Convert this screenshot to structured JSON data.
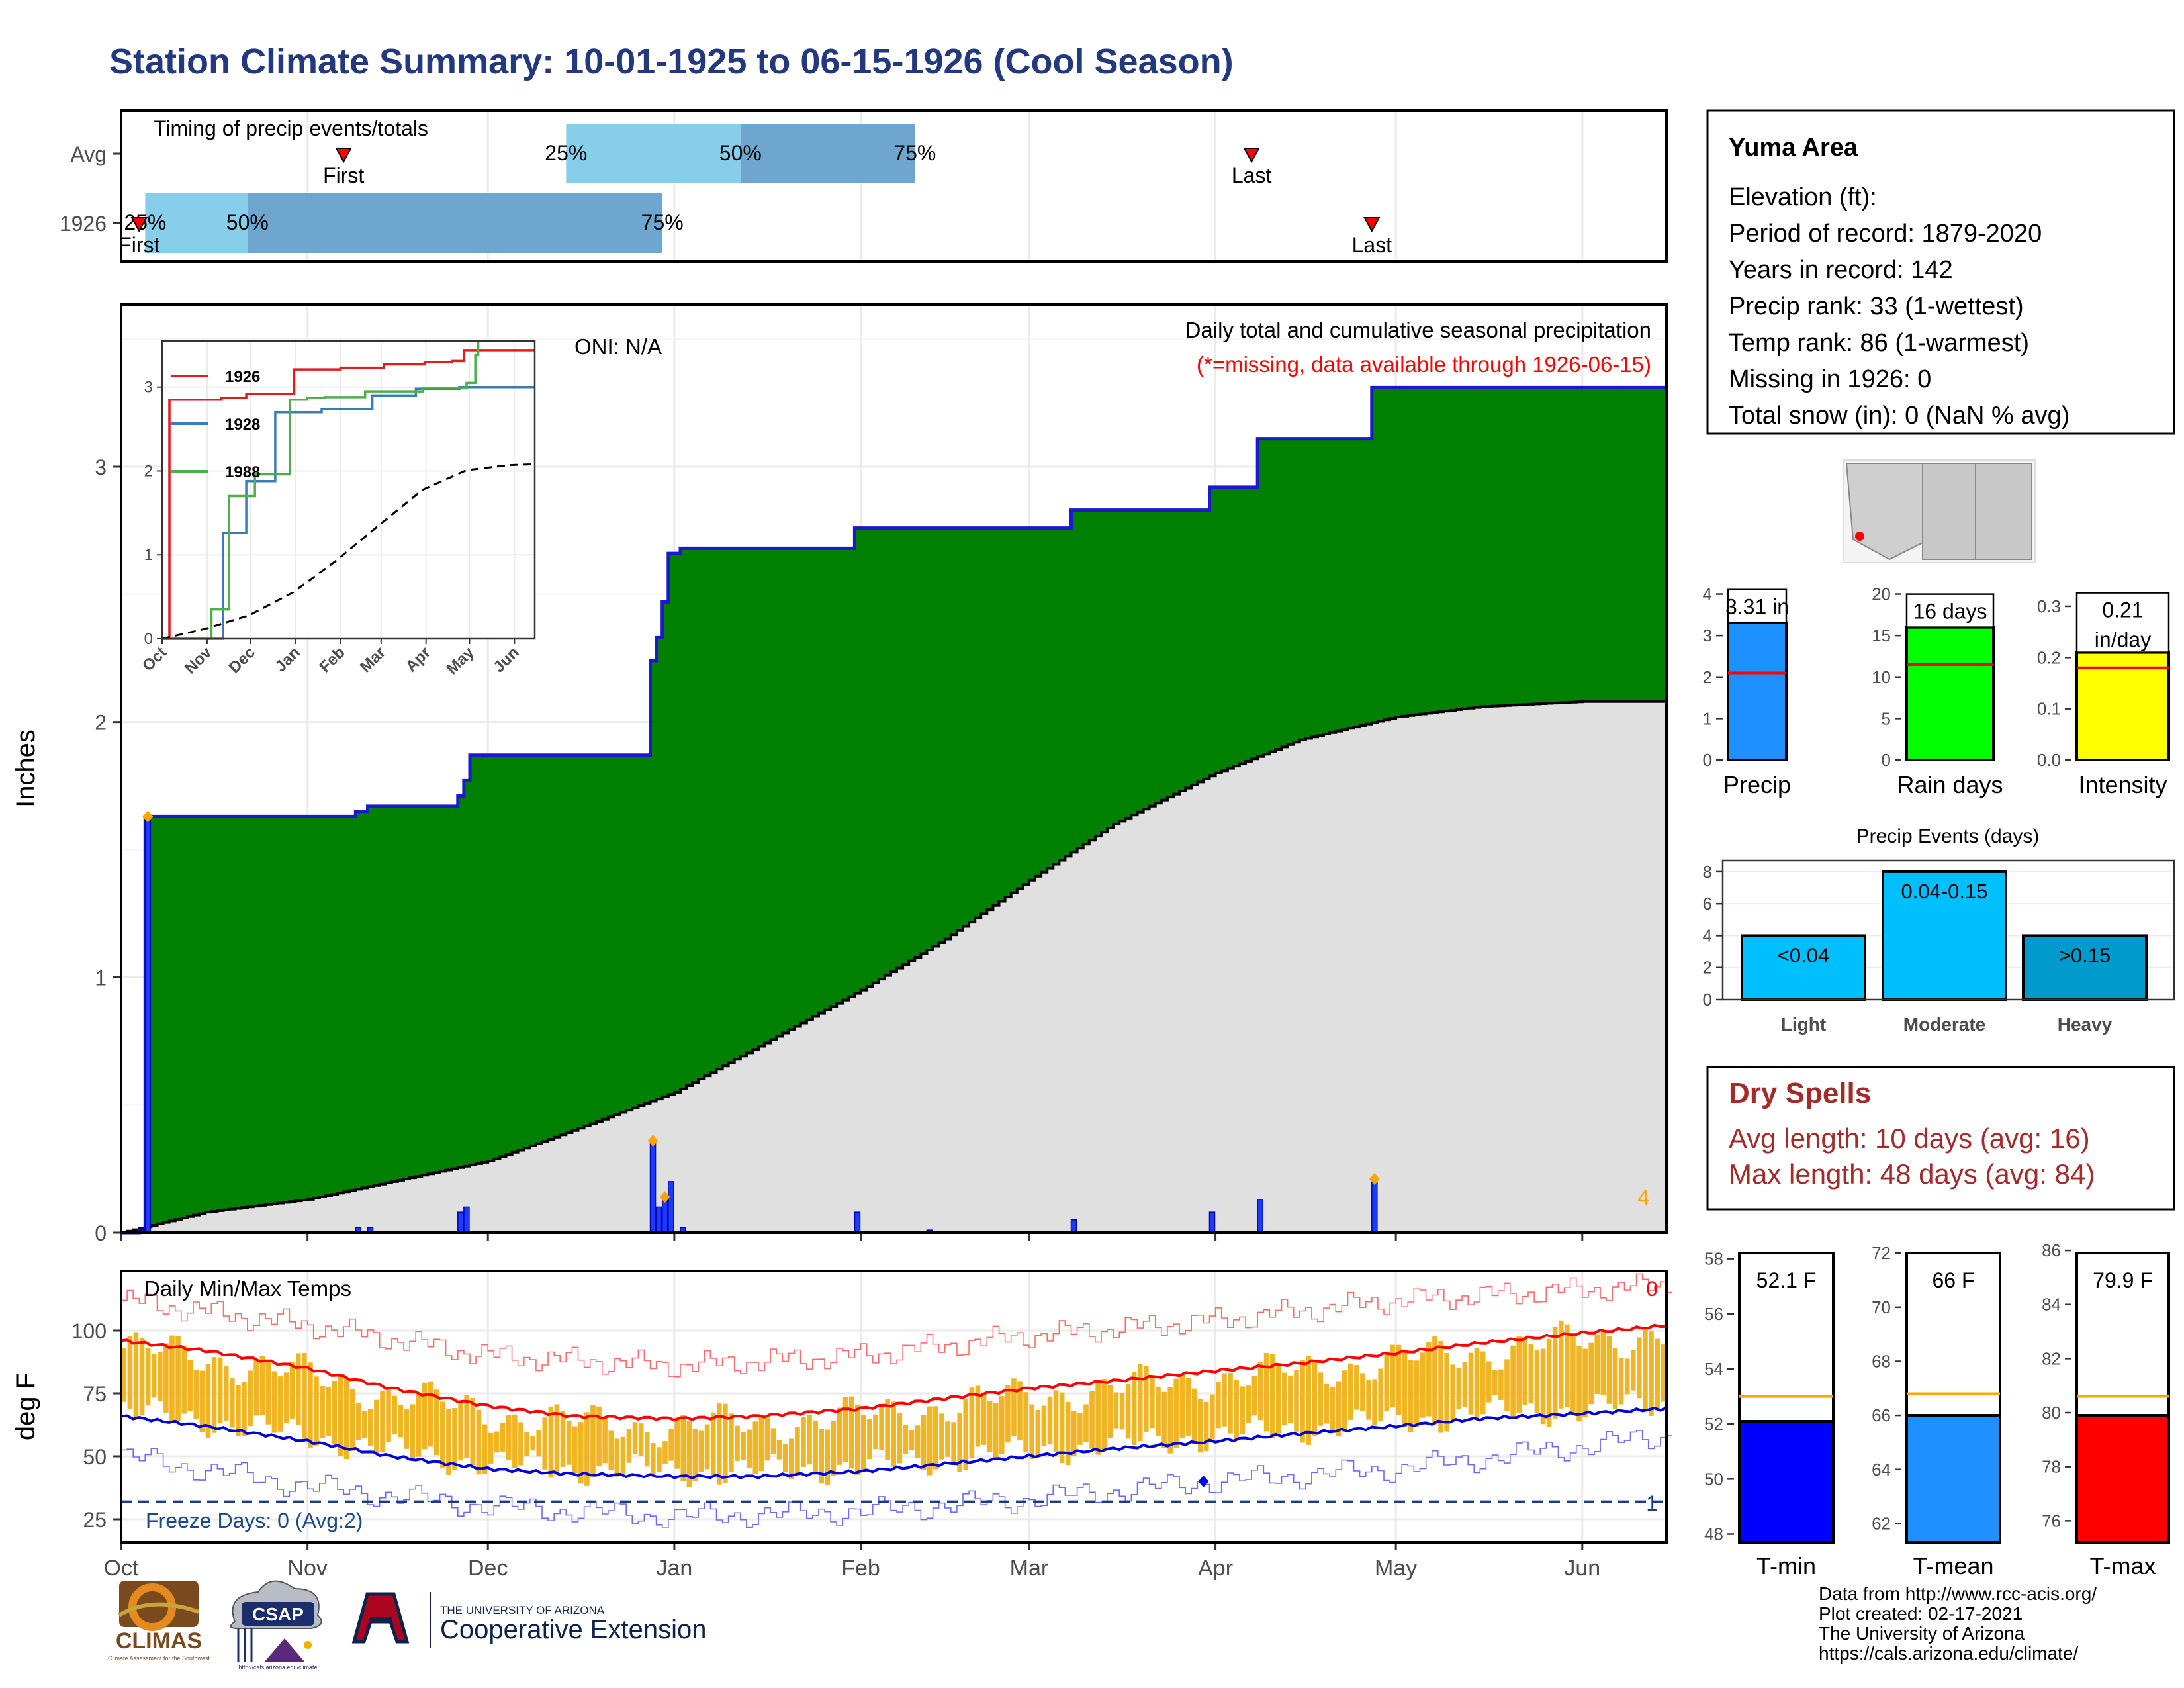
{
  "title": "Station Climate Summary: 10-01-1925 to 06-15-1926 (Cool Season)",
  "colors": {
    "title": "#23397f",
    "green": "#008000",
    "gray_fill": "#e0e0e0",
    "blue_bars": "#1a3cff",
    "orange": "#ffa500",
    "temp_bar": "#efb525",
    "dry_red": "#a52a2a",
    "light_blue": "#87ceeb",
    "mid_blue": "#6fa6d0",
    "precip_box": "#1e90ff",
    "rain_box": "#00ff00",
    "intensity_box": "#ffff00",
    "light_box": "#00bfff",
    "moderate_box": "#00bfff",
    "heavy_box": "#009acd"
  },
  "timing": {
    "label": "Timing of precip events/totals",
    "rows": [
      {
        "label": "Avg",
        "first_date": "1925-11-07",
        "first_label": "First",
        "last_date": "1926-04-07",
        "last_label": "Last",
        "q25_date": "1925-12-14",
        "q50_date": "1926-01-12",
        "q75_date": "1926-02-10",
        "q25": "25%",
        "q50": "50%",
        "q75": "75%"
      },
      {
        "label": "1926",
        "first_date": "1925-10-04",
        "first_label": "First",
        "last_date": "1926-04-27",
        "last_label": "Last",
        "q25_date": "1925-10-05",
        "q50_date": "1925-10-22",
        "q75_date": "1925-12-30",
        "q25": "25%",
        "q50": "50%",
        "q75": "75%"
      }
    ]
  },
  "precip_panel": {
    "ylabel": "Inches",
    "oni": "ONI: N/A",
    "caption": "Daily total and cumulative seasonal precipitation",
    "missing_note": "(*=missing, data available through 1926-06-15)",
    "corner_count": "4",
    "yticks": [
      "0",
      "1",
      "2",
      "3"
    ]
  },
  "inset": {
    "xticks": [
      "Oct",
      "Nov",
      "Dec",
      "Jan",
      "Feb",
      "Mar",
      "Apr",
      "May",
      "Jun"
    ],
    "yticks": [
      "0",
      "1",
      "2",
      "3"
    ],
    "legend": [
      "1926",
      "1928",
      "1988"
    ],
    "series_colors": [
      "#e41a1c",
      "#377eb8",
      "#4daf4a"
    ]
  },
  "temp_panel": {
    "ylabel": "deg F",
    "label": "Daily Min/Max Temps",
    "freeze_label": "Freeze Days: 0 (Avg:2)",
    "max_count": "0",
    "min_count": "1",
    "yticks": [
      "25",
      "50",
      "75",
      "100"
    ],
    "freeze_line": 32
  },
  "months": [
    "Oct",
    "Nov",
    "Dec",
    "Jan",
    "Feb",
    "Mar",
    "Apr",
    "May",
    "Jun"
  ],
  "info": {
    "station": "Yuma Area",
    "lines": [
      "Elevation (ft):",
      "Period of record: 1879-2020",
      "Years in record: 142",
      "Precip rank: 33 (1-wettest)",
      "Temp rank: 86 (1-warmest)",
      "Missing in 1926: 0",
      "Total snow (in): 0 (NaN % avg)"
    ]
  },
  "summary_bars": [
    {
      "name": "Precip",
      "value": 3.31,
      "avg": 2.1,
      "label": "3.31 in",
      "label2": "",
      "ymax": 4.2,
      "yticks": [
        "0",
        "1",
        "2",
        "3",
        "4"
      ],
      "ytick_values": [
        0,
        1,
        2,
        3,
        4
      ],
      "color": "#1e90ff"
    },
    {
      "name": "Rain days",
      "value": 16,
      "avg": 11.5,
      "label": "16 days",
      "label2": "",
      "ymax": 21,
      "yticks": [
        "0",
        "5",
        "10",
        "15",
        "20"
      ],
      "ytick_values": [
        0,
        5,
        10,
        15,
        20
      ],
      "color": "#00ff00"
    },
    {
      "name": "Intensity",
      "value": 0.21,
      "avg": 0.18,
      "label": "0.21",
      "label2": "in/day",
      "ymax": 0.34,
      "yticks": [
        "0.0",
        "0.1",
        "0.2",
        "0.3"
      ],
      "ytick_values": [
        0,
        0.1,
        0.2,
        0.3
      ],
      "color": "#ffff00"
    }
  ],
  "events": {
    "title": "Precip Events (days)",
    "bars": [
      {
        "name": "Light",
        "value": 4,
        "label": "<0.04",
        "color": "#00bfff"
      },
      {
        "name": "Moderate",
        "value": 8,
        "label": "0.04-0.15",
        "color": "#00bfff"
      },
      {
        "name": "Heavy",
        "value": 4,
        "label": ">0.15",
        "color": "#009acd"
      }
    ],
    "yticks": [
      "0",
      "2",
      "4",
      "6",
      "8"
    ]
  },
  "dry_spells": {
    "title": "Dry Spells",
    "avg_line": "Avg length: 10 days (avg: 16)",
    "max_line": "Max length: 48 days (avg: 84)"
  },
  "temp_bars": [
    {
      "name": "T-min",
      "value": 52.1,
      "avg": 53.0,
      "label": "52.1 F",
      "ymin": 47.7,
      "ymax": 58.4,
      "yticks": [
        "48",
        "50",
        "52",
        "54",
        "56",
        "58"
      ],
      "ytick_values": [
        48,
        50,
        52,
        54,
        56,
        58
      ],
      "color": "#0000ff"
    },
    {
      "name": "T-mean",
      "value": 66,
      "avg": 66.8,
      "label": "66 F",
      "ymin": 61.3,
      "ymax": 72.2,
      "yticks": [
        "62",
        "64",
        "66",
        "68",
        "70",
        "72"
      ],
      "ytick_values": [
        62,
        64,
        66,
        68,
        70,
        72
      ],
      "color": "#1e90ff"
    },
    {
      "name": "T-max",
      "value": 79.9,
      "avg": 80.6,
      "label": "79.9 F",
      "ymin": 75.2,
      "ymax": 86.1,
      "yticks": [
        "76",
        "78",
        "80",
        "82",
        "84",
        "86"
      ],
      "ytick_values": [
        76,
        78,
        80,
        82,
        84,
        86
      ],
      "color": "#ff0000"
    }
  ],
  "credits": [
    "Data from http://www.rcc-acis.org/",
    "Plot created: 02-17-2021",
    "The University of Arizona",
    "https://cals.arizona.edu/climate/"
  ],
  "logos": {
    "climas": "CLIMAS",
    "climas_sub": "Climate Assessment for the Southwest",
    "csap": "CSAP",
    "csap_url": "http://cals.arizona.edu/climate",
    "ua_small": "THE UNIVERSITY OF ARIZONA",
    "coop": "Cooperative Extension"
  },
  "chart_data": [
    {
      "type": "area",
      "title": "Daily total and cumulative seasonal precipitation",
      "ylabel": "Inches",
      "ylim": [
        0,
        3.55
      ],
      "x_start": "1925-10-01",
      "x_end": "1926-06-15",
      "cumulative_1926": [
        [
          "1925-10-01",
          0.0
        ],
        [
          "1925-10-04",
          0.01
        ],
        [
          "1925-10-05",
          1.63
        ],
        [
          "1925-11-09",
          1.65
        ],
        [
          "1925-11-11",
          1.67
        ],
        [
          "1925-11-26",
          1.71
        ],
        [
          "1925-11-27",
          1.77
        ],
        [
          "1925-11-28",
          1.87
        ],
        [
          "1925-12-28",
          2.24
        ],
        [
          "1925-12-29",
          2.33
        ],
        [
          "1925-12-30",
          2.47
        ],
        [
          "1925-12-31",
          2.66
        ],
        [
          "1926-01-02",
          2.68
        ],
        [
          "1926-01-31",
          2.76
        ],
        [
          "1926-03-08",
          2.83
        ],
        [
          "1926-03-31",
          2.92
        ],
        [
          "1926-04-08",
          3.11
        ],
        [
          "1926-04-27",
          3.31
        ],
        [
          "1926-06-15",
          3.31
        ]
      ],
      "average_cumulative": [
        [
          "1925-10-01",
          0.0
        ],
        [
          "1925-10-15",
          0.08
        ],
        [
          "1925-11-01",
          0.13
        ],
        [
          "1925-11-15",
          0.2
        ],
        [
          "1925-12-01",
          0.28
        ],
        [
          "1925-12-15",
          0.4
        ],
        [
          "1926-01-01",
          0.55
        ],
        [
          "1926-01-15",
          0.73
        ],
        [
          "1926-02-01",
          0.95
        ],
        [
          "1926-02-15",
          1.15
        ],
        [
          "1926-03-01",
          1.38
        ],
        [
          "1926-03-15",
          1.6
        ],
        [
          "1926-04-01",
          1.8
        ],
        [
          "1926-04-15",
          1.93
        ],
        [
          "1926-05-01",
          2.02
        ],
        [
          "1926-05-15",
          2.06
        ],
        [
          "1926-06-01",
          2.08
        ],
        [
          "1926-06-15",
          2.08
        ]
      ],
      "daily_precip": [
        [
          "1925-10-04",
          0.01
        ],
        [
          "1925-10-05",
          1.62
        ],
        [
          "1925-11-09",
          0.02
        ],
        [
          "1925-11-11",
          0.02
        ],
        [
          "1925-11-26",
          0.08
        ],
        [
          "1925-11-27",
          0.1
        ],
        [
          "1925-12-28",
          0.36
        ],
        [
          "1925-12-29",
          0.1
        ],
        [
          "1925-12-30",
          0.14
        ],
        [
          "1925-12-31",
          0.2
        ],
        [
          "1926-01-02",
          0.02
        ],
        [
          "1926-01-31",
          0.08
        ],
        [
          "1926-02-12",
          0.01
        ],
        [
          "1926-03-08",
          0.05
        ],
        [
          "1926-03-31",
          0.08
        ],
        [
          "1926-04-08",
          0.13
        ],
        [
          "1926-04-27",
          0.2
        ]
      ],
      "orange_markers": [
        [
          "1925-10-05",
          1.63
        ],
        [
          "1925-12-28",
          0.36
        ],
        [
          "1925-12-30",
          0.14
        ],
        [
          "1926-04-27",
          0.21
        ]
      ]
    },
    {
      "type": "line",
      "title": "",
      "x": [
        "Oct",
        "Nov",
        "Dec",
        "Jan",
        "Feb",
        "Mar",
        "Apr",
        "May",
        "Jun"
      ],
      "ylim": [
        0,
        3.55
      ],
      "series": [
        {
          "name": "1926",
          "points": [
            [
              0,
              0
            ],
            [
              4,
              0.01
            ],
            [
              5,
              2.85
            ],
            [
              39,
              2.85
            ],
            [
              41,
              2.87
            ],
            [
              57,
              2.87
            ],
            [
              58,
              2.92
            ],
            [
              89,
              2.92
            ],
            [
              91,
              3.21
            ],
            [
              123,
              3.23
            ],
            [
              153,
              3.27
            ],
            [
              181,
              3.3
            ],
            [
              200,
              3.31
            ],
            [
              208,
              3.44
            ],
            [
              257,
              3.44
            ]
          ]
        },
        {
          "name": "1928",
          "points": [
            [
              0,
              0
            ],
            [
              40,
              0
            ],
            [
              42,
              1.26
            ],
            [
              57,
              1.26
            ],
            [
              58,
              1.88
            ],
            [
              75,
              1.88
            ],
            [
              78,
              2.7
            ],
            [
              110,
              2.74
            ],
            [
              145,
              2.9
            ],
            [
              175,
              2.98
            ],
            [
              205,
              3.0
            ],
            [
              257,
              3.0
            ]
          ]
        },
        {
          "name": "1988",
          "points": [
            [
              0,
              0
            ],
            [
              30,
              0
            ],
            [
              34,
              0.35
            ],
            [
              44,
              0.35
            ],
            [
              46,
              1.7
            ],
            [
              62,
              1.7
            ],
            [
              64,
              1.96
            ],
            [
              86,
              1.96
            ],
            [
              88,
              2.85
            ],
            [
              100,
              2.87
            ],
            [
              112,
              2.88
            ],
            [
              140,
              2.95
            ],
            [
              180,
              2.99
            ],
            [
              210,
              3.05
            ],
            [
              216,
              3.38
            ],
            [
              218,
              3.55
            ],
            [
              257,
              3.55
            ]
          ]
        },
        {
          "name": "",
          "dashed": true,
          "points": [
            [
              0,
              0
            ],
            [
              30,
              0.12
            ],
            [
              60,
              0.28
            ],
            [
              90,
              0.55
            ],
            [
              120,
              0.93
            ],
            [
              150,
              1.36
            ],
            [
              180,
              1.78
            ],
            [
              210,
              2.01
            ],
            [
              240,
              2.07
            ],
            [
              257,
              2.08
            ]
          ]
        }
      ]
    },
    {
      "type": "bar",
      "title": "Daily Min/Max Temps",
      "ylabel": "deg F",
      "ylim": [
        20,
        122
      ],
      "note": "Daily observed temperature range bars (Tmin to Tmax) with smoothed normal max/min lines and record max/min envelopes",
      "normal_max": [
        [
          "1925-10-01",
          96
        ],
        [
          "1925-10-15",
          92
        ],
        [
          "1925-11-01",
          85
        ],
        [
          "1925-11-15",
          77
        ],
        [
          "1925-12-01",
          70
        ],
        [
          "1925-12-15",
          66
        ],
        [
          "1926-01-01",
          65
        ],
        [
          "1926-01-15",
          66
        ],
        [
          "1926-02-01",
          69
        ],
        [
          "1926-02-15",
          73
        ],
        [
          "1926-03-01",
          77
        ],
        [
          "1926-03-15",
          80
        ],
        [
          "1926-04-01",
          84
        ],
        [
          "1926-04-15",
          87
        ],
        [
          "1926-05-01",
          91
        ],
        [
          "1926-05-15",
          95
        ],
        [
          "1926-06-01",
          99
        ],
        [
          "1926-06-15",
          102
        ]
      ],
      "normal_min": [
        [
          "1925-10-01",
          66
        ],
        [
          "1925-10-15",
          62
        ],
        [
          "1925-11-01",
          56
        ],
        [
          "1925-11-15",
          50
        ],
        [
          "1925-12-01",
          45
        ],
        [
          "1925-12-15",
          43
        ],
        [
          "1926-01-01",
          42
        ],
        [
          "1926-01-15",
          42
        ],
        [
          "1926-02-01",
          44
        ],
        [
          "1926-02-15",
          47
        ],
        [
          "1926-03-01",
          50
        ],
        [
          "1926-03-15",
          53
        ],
        [
          "1926-04-01",
          56
        ],
        [
          "1926-04-15",
          59
        ],
        [
          "1926-05-01",
          62
        ],
        [
          "1926-05-15",
          65
        ],
        [
          "1926-06-01",
          67
        ],
        [
          "1926-06-15",
          69
        ]
      ],
      "record_max": [
        [
          "1925-10-01",
          112
        ],
        [
          "1925-11-01",
          102
        ],
        [
          "1925-12-01",
          90
        ],
        [
          "1926-01-01",
          86
        ],
        [
          "1926-02-01",
          90
        ],
        [
          "1926-03-01",
          98
        ],
        [
          "1926-04-01",
          104
        ],
        [
          "1926-05-01",
          112
        ],
        [
          "1926-06-15",
          118
        ]
      ],
      "record_min": [
        [
          "1925-10-01",
          50
        ],
        [
          "1925-11-01",
          38
        ],
        [
          "1925-12-01",
          30
        ],
        [
          "1926-01-01",
          26
        ],
        [
          "1926-02-01",
          28
        ],
        [
          "1926-03-01",
          33
        ],
        [
          "1926-04-01",
          40
        ],
        [
          "1926-05-01",
          45
        ],
        [
          "1926-06-15",
          58
        ]
      ],
      "freeze_line": 32,
      "blue_marker": [
        "1926-03-30",
        40
      ]
    },
    {
      "type": "bar",
      "title": "",
      "categories": [
        "Precip",
        "Rain days",
        "Intensity"
      ],
      "values": [
        3.31,
        16,
        0.21
      ],
      "averages": [
        2.1,
        11.5,
        0.18
      ]
    },
    {
      "type": "bar",
      "title": "Precip Events (days)",
      "categories": [
        "Light",
        "Moderate",
        "Heavy"
      ],
      "values": [
        4,
        8,
        4
      ],
      "ylim": [
        0,
        8.7
      ]
    },
    {
      "type": "bar",
      "title": "",
      "categories": [
        "T-min",
        "T-mean",
        "T-max"
      ],
      "values": [
        52.1,
        66,
        79.9
      ],
      "averages": [
        53.0,
        66.8,
        80.6
      ]
    }
  ]
}
